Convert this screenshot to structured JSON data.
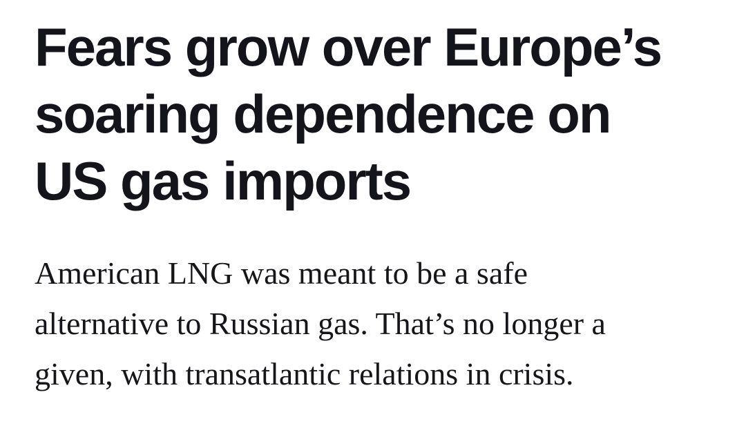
{
  "page": {
    "background_color": "#ffffff"
  },
  "article": {
    "headline": {
      "full_text": "Fears grow over Europe’s soaring dependence on US gas imports",
      "lines": [
        "Fears grow over Europe’s",
        "soaring dependence on",
        "US gas imports"
      ],
      "color": "#14141b"
    },
    "subheadline": {
      "full_text": "American LNG was meant to be a safe alternative to Russian gas. That’s no longer a given, with transatlantic relations in crisis.",
      "lines": [
        "American LNG was meant to be a safe",
        "alternative to Russian gas. That’s no longer a",
        "given, with transatlantic relations in crisis."
      ],
      "color": "#16161a"
    }
  }
}
